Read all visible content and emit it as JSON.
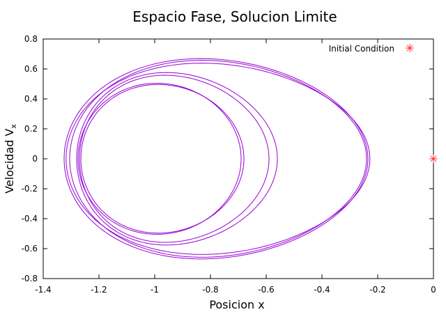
{
  "chart_data": {
    "type": "line",
    "title": "Espacio Fase, Solucion Limite",
    "xlabel": "Posicion x",
    "ylabel_main": "Velocidad V",
    "ylabel_sub": "x",
    "xlim": [
      -1.4,
      0
    ],
    "ylim": [
      -0.8,
      0.8
    ],
    "x_ticks": [
      "-1.4",
      "-1.2",
      "-1",
      "-0.8",
      "-0.6",
      "-0.4",
      "-0.2",
      "0"
    ],
    "x_tick_values": [
      -1.4,
      -1.2,
      -1.0,
      -0.8,
      -0.6,
      -0.4,
      -0.2,
      0
    ],
    "y_ticks": [
      "0.8",
      "0.6",
      "0.4",
      "0.2",
      "0",
      "-0.2",
      "-0.4",
      "-0.6",
      "-0.8"
    ],
    "y_tick_values": [
      0.8,
      0.6,
      0.4,
      0.2,
      0,
      -0.2,
      -0.4,
      -0.6,
      -0.8
    ],
    "grid": false,
    "legend_position": "top-right",
    "series": [
      {
        "name": "Initial Condition",
        "kind": "marker",
        "color": "#ff3333",
        "points": [
          [
            0,
            0
          ]
        ]
      },
      {
        "kind": "trajectory",
        "color": "#9400d3",
        "loops": [
          {
            "xmin": -1.325,
            "xmax": -0.235,
            "xpeak": -0.88,
            "vmax": 0.69
          },
          {
            "xmin": -1.318,
            "xmax": -0.228,
            "xpeak": -0.88,
            "vmax": 0.66
          },
          {
            "xmin": -1.305,
            "xmax": -0.24,
            "xpeak": -0.88,
            "vmax": 0.68
          },
          {
            "xmin": -1.28,
            "xmax": -0.56,
            "xpeak": -0.99,
            "vmax": 0.595
          },
          {
            "xmin": -1.27,
            "xmax": -0.59,
            "xpeak": -0.99,
            "vmax": 0.575
          },
          {
            "xmin": -1.265,
            "xmax": -0.68,
            "xpeak": -1.0,
            "vmax": 0.505
          },
          {
            "xmin": -1.275,
            "xmax": -0.69,
            "xpeak": -1.0,
            "vmax": 0.51
          }
        ]
      }
    ]
  }
}
